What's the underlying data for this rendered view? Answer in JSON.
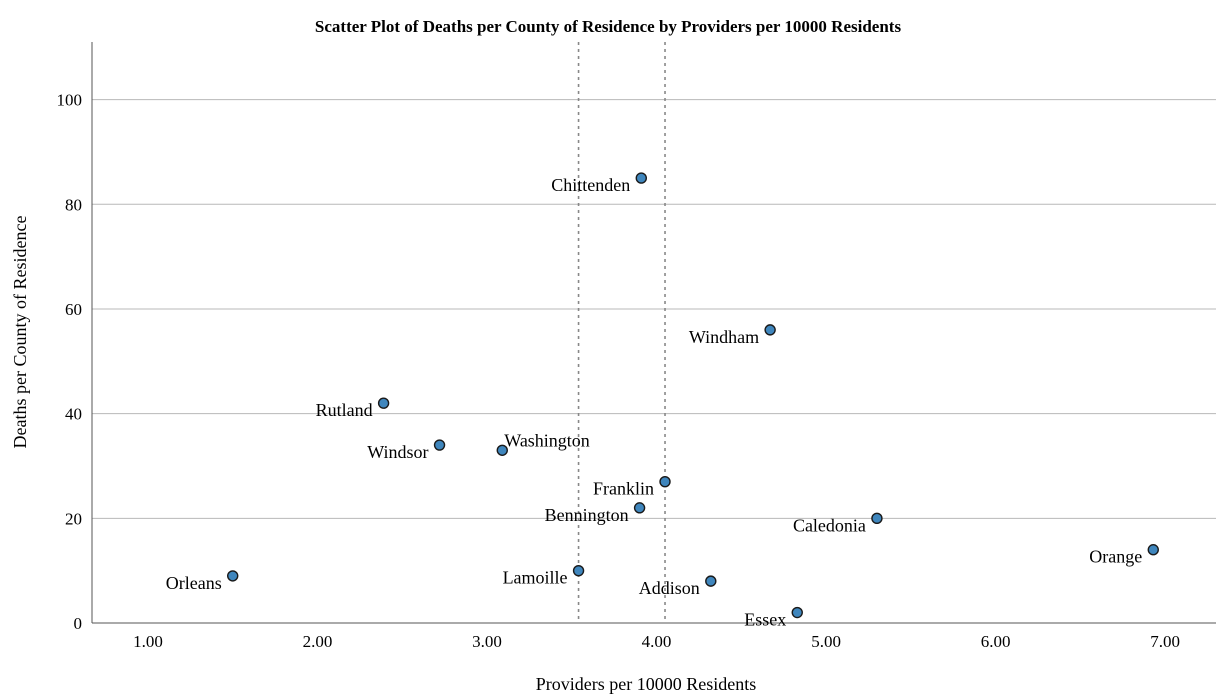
{
  "chart_data": {
    "type": "scatter",
    "title": "Scatter Plot of Deaths per County of Residence by Providers per 10000 Residents",
    "xlabel": "Providers per 10000 Residents",
    "ylabel": "Deaths per County of Residence",
    "xlim": [
      0.67,
      7.3
    ],
    "ylim": [
      0,
      111
    ],
    "x_ticks": [
      1.0,
      2.0,
      3.0,
      4.0,
      5.0,
      6.0,
      7.0
    ],
    "x_tick_labels": [
      "1.00",
      "2.00",
      "3.00",
      "4.00",
      "5.00",
      "6.00",
      "7.00"
    ],
    "y_ticks": [
      0,
      20,
      40,
      60,
      80,
      100
    ],
    "y_tick_labels": [
      "0",
      "20",
      "40",
      "60",
      "80",
      "100"
    ],
    "grid": "horizontal",
    "reference_lines_x": [
      3.54,
      4.05
    ],
    "points": [
      {
        "label": "Chittenden",
        "x": 3.91,
        "y": 85,
        "label_side": "left"
      },
      {
        "label": "Windham",
        "x": 4.67,
        "y": 56,
        "label_side": "left"
      },
      {
        "label": "Rutland",
        "x": 2.39,
        "y": 42,
        "label_side": "left"
      },
      {
        "label": "Windsor",
        "x": 2.72,
        "y": 34,
        "label_side": "left"
      },
      {
        "label": "Washington",
        "x": 3.09,
        "y": 33,
        "label_side": "right"
      },
      {
        "label": "Franklin",
        "x": 4.05,
        "y": 27,
        "label_side": "left"
      },
      {
        "label": "Bennington",
        "x": 3.9,
        "y": 22,
        "label_side": "left"
      },
      {
        "label": "Caledonia",
        "x": 5.3,
        "y": 20,
        "label_side": "left"
      },
      {
        "label": "Orange",
        "x": 6.93,
        "y": 14,
        "label_side": "left"
      },
      {
        "label": "Orleans",
        "x": 1.5,
        "y": 9,
        "label_side": "left"
      },
      {
        "label": "Lamoille",
        "x": 3.54,
        "y": 10,
        "label_side": "left"
      },
      {
        "label": "Addison",
        "x": 4.32,
        "y": 8,
        "label_side": "left"
      },
      {
        "label": "Essex",
        "x": 4.83,
        "y": 2,
        "label_side": "left"
      }
    ],
    "marker_color": "#3f86bd"
  }
}
